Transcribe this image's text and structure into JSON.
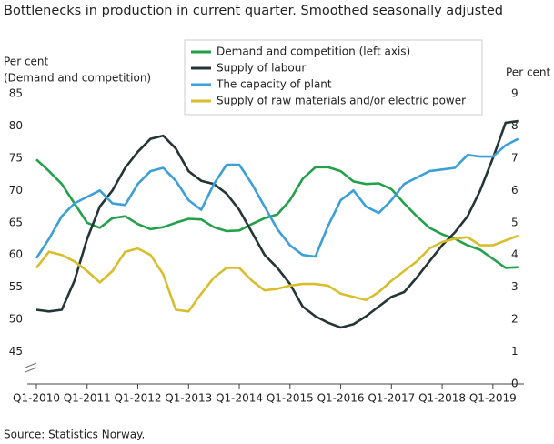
{
  "chart_data": {
    "type": "line",
    "title": "Bottlenecks in production in current quarter. Smoothed seasonally adjusted",
    "y_label": "Per cent",
    "y_label_note": "(Demand  and competition)",
    "y2_label": "Per cent",
    "source": "Source: Statistics Norway.",
    "categories": [
      "Q1-2010",
      null,
      null,
      null,
      "Q1-2011",
      null,
      null,
      null,
      "Q1-2012",
      null,
      null,
      null,
      "Q1-2013",
      null,
      null,
      null,
      "Q1-2014",
      null,
      null,
      null,
      "Q1-2015",
      null,
      null,
      null,
      "Q1-2016",
      null,
      null,
      null,
      "Q1-2017",
      null,
      null,
      null,
      "Q1-2018",
      null,
      null,
      null,
      "Q1-2019",
      null,
      null
    ],
    "ylim": [
      40,
      85
    ],
    "yticks": [
      45,
      50,
      55,
      60,
      65,
      70,
      75,
      80,
      85
    ],
    "y2lim": [
      0,
      9
    ],
    "y2ticks": [
      0,
      1,
      2,
      3,
      4,
      5,
      6,
      7,
      8,
      9
    ],
    "legend": "top",
    "series": [
      {
        "name": "Demand and competition (left axis)",
        "color": "#23a04a",
        "values": [
          74.8,
          73,
          71,
          68,
          65,
          64.2,
          65.7,
          66,
          64.8,
          64,
          64.3,
          65,
          65.6,
          65.5,
          64.3,
          63.7,
          63.8,
          64.8,
          65.7,
          66.3,
          68.5,
          71.8,
          73.6,
          73.6,
          73,
          71.4,
          71,
          71.1,
          70.2,
          68,
          66,
          64.2,
          63.2,
          62.5,
          61.5,
          60.8,
          59.4,
          58,
          58.1
        ]
      },
      {
        "name": "Supply of labour",
        "color": "#243537",
        "axis": "y2",
        "values": [
          2.3,
          2.25,
          2.3,
          3.2,
          4.5,
          5.5,
          6.0,
          6.7,
          7.2,
          7.6,
          7.7,
          7.3,
          6.6,
          6.3,
          6.2,
          5.9,
          5.4,
          4.7,
          4.0,
          3.6,
          3.1,
          2.4,
          2.1,
          1.9,
          1.75,
          1.85,
          2.1,
          2.4,
          2.7,
          2.85,
          3.3,
          3.8,
          4.3,
          4.7,
          5.2,
          6.0,
          7.0,
          8.1,
          8.15
        ]
      },
      {
        "name": "The capacity of plant",
        "color": "#3c9fd8",
        "axis": "y2",
        "values": [
          3.9,
          4.5,
          5.2,
          5.6,
          5.8,
          6.0,
          5.6,
          5.55,
          6.2,
          6.6,
          6.7,
          6.3,
          5.7,
          5.4,
          6.2,
          6.8,
          6.8,
          6.2,
          5.5,
          4.8,
          4.3,
          4.0,
          3.95,
          4.9,
          5.7,
          6.0,
          5.5,
          5.3,
          5.7,
          6.2,
          6.4,
          6.6,
          6.65,
          6.7,
          7.1,
          7.05,
          7.05,
          7.4,
          7.6
        ]
      },
      {
        "name": "Supply of raw materials and/or electric power",
        "color": "#d8be2c",
        "axis": "y2",
        "values": [
          3.6,
          4.1,
          4.0,
          3.8,
          3.5,
          3.15,
          3.5,
          4.1,
          4.2,
          4.0,
          3.4,
          2.3,
          2.25,
          2.8,
          3.3,
          3.6,
          3.6,
          3.2,
          2.9,
          2.95,
          3.05,
          3.1,
          3.1,
          3.05,
          2.8,
          2.7,
          2.6,
          2.85,
          3.2,
          3.5,
          3.8,
          4.2,
          4.4,
          4.5,
          4.55,
          4.3,
          4.3,
          4.45,
          4.6
        ]
      }
    ]
  }
}
